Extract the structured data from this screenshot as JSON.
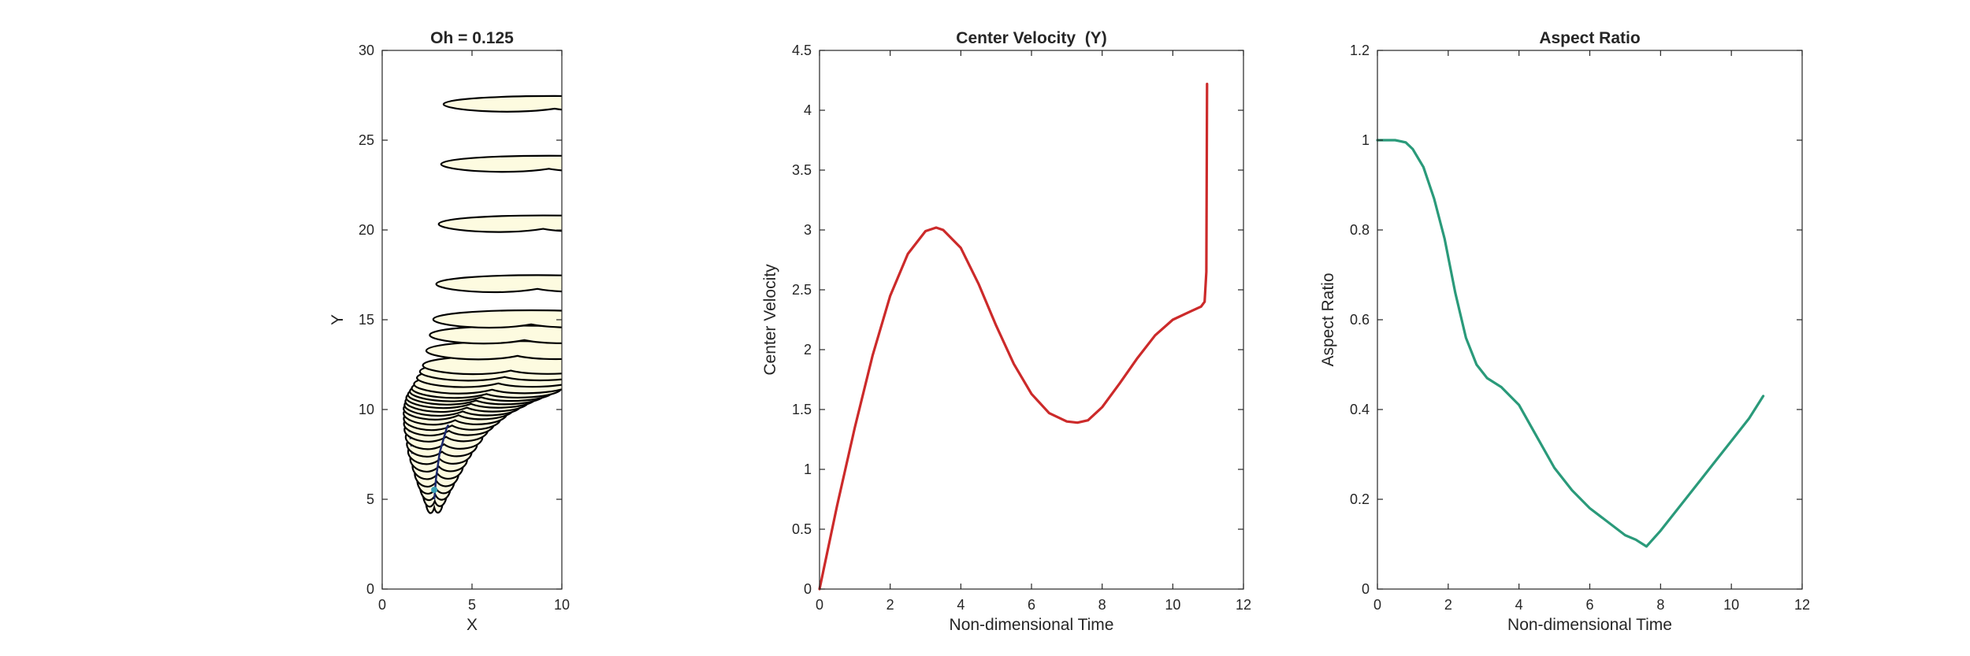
{
  "chart_data": [
    {
      "type": "line",
      "title": "Oh = 0.125",
      "xlabel": "X",
      "ylabel": "Y",
      "xlim": [
        0,
        10
      ],
      "ylim": [
        0,
        30
      ],
      "xticks": [
        "0",
        "5",
        "10"
      ],
      "yticks": [
        "0",
        "5",
        "10",
        "15",
        "20",
        "25",
        "30"
      ],
      "grid": false,
      "colors": {
        "outline": "#000000",
        "fill": "#fdfbe0",
        "inner": "#1c2a6e",
        "core": "#3aa0b5"
      },
      "droplet_count": 32,
      "trajectory": {
        "x": [
          2.9,
          3.0,
          3.2,
          3.6,
          4.2,
          5.0,
          6.0,
          7.2,
          8.5,
          9.6
        ],
        "y": [
          5.0,
          6.2,
          7.6,
          9.0,
          10.0,
          10.7,
          11.3,
          12.5,
          15.5,
          27.0
        ]
      }
    },
    {
      "type": "line",
      "title": "Center Velocity  (Y)",
      "xlabel": "Non-dimensional Time",
      "ylabel": "Center Velocity",
      "xlim": [
        0,
        12
      ],
      "ylim": [
        0,
        4.5
      ],
      "xticks": [
        "0",
        "2",
        "4",
        "6",
        "8",
        "10",
        "12"
      ],
      "yticks": [
        "0",
        "0.5",
        "1",
        "1.5",
        "2",
        "2.5",
        "3",
        "3.5",
        "4",
        "4.5"
      ],
      "grid": false,
      "colors": {
        "line": "#cc2a2a"
      },
      "series": [
        {
          "x": [
            0,
            0.5,
            1.0,
            1.5,
            2.0,
            2.5,
            3.0,
            3.3,
            3.5,
            4.0,
            4.5,
            5.0,
            5.5,
            6.0,
            6.5,
            7.0,
            7.3,
            7.6,
            8.0,
            8.5,
            9.0,
            9.5,
            10.0,
            10.5,
            10.8,
            10.9,
            10.95,
            10.97
          ],
          "y": [
            0,
            0.7,
            1.35,
            1.95,
            2.45,
            2.8,
            2.99,
            3.02,
            3.0,
            2.85,
            2.55,
            2.2,
            1.88,
            1.63,
            1.47,
            1.4,
            1.39,
            1.41,
            1.52,
            1.72,
            1.93,
            2.12,
            2.25,
            2.32,
            2.36,
            2.4,
            2.65,
            4.22
          ]
        }
      ]
    },
    {
      "type": "line",
      "title": "Aspect Ratio",
      "xlabel": "Non-dimensional Time",
      "ylabel": "Aspect Ratio",
      "xlim": [
        0,
        12
      ],
      "ylim": [
        0,
        1.2
      ],
      "xticks": [
        "0",
        "2",
        "4",
        "6",
        "8",
        "10",
        "12"
      ],
      "yticks": [
        "0",
        "0.2",
        "0.4",
        "0.6",
        "0.8",
        "1",
        "1.2"
      ],
      "grid": false,
      "colors": {
        "line": "#2a9a7a"
      },
      "series": [
        {
          "x": [
            0,
            0.5,
            0.8,
            1.0,
            1.3,
            1.6,
            1.9,
            2.2,
            2.5,
            2.8,
            3.1,
            3.5,
            4.0,
            4.5,
            5.0,
            5.5,
            6.0,
            6.5,
            7.0,
            7.3,
            7.6,
            8.0,
            8.5,
            9.0,
            9.5,
            10.0,
            10.5,
            10.9
          ],
          "y": [
            1.0,
            1.0,
            0.995,
            0.98,
            0.94,
            0.87,
            0.78,
            0.66,
            0.56,
            0.5,
            0.47,
            0.45,
            0.41,
            0.34,
            0.27,
            0.22,
            0.18,
            0.15,
            0.12,
            0.11,
            0.095,
            0.13,
            0.18,
            0.23,
            0.28,
            0.33,
            0.38,
            0.43
          ]
        }
      ]
    }
  ]
}
